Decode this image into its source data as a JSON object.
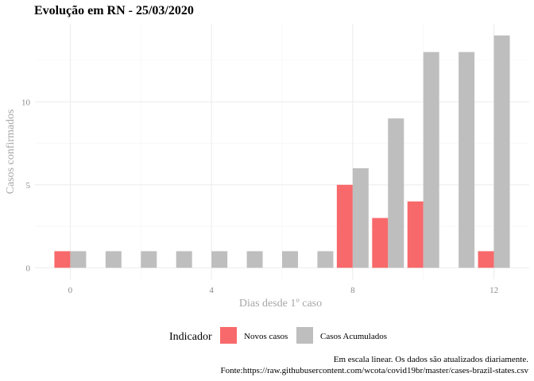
{
  "chart_data": {
    "type": "bar",
    "title": "Evolução em RN  -  25/03/2020",
    "xlabel": "Dias desde 1º caso",
    "ylabel": "Casos confirmados",
    "x": [
      0,
      1,
      2,
      3,
      4,
      5,
      6,
      7,
      8,
      9,
      10,
      11,
      12
    ],
    "series": [
      {
        "name": "Novos casos",
        "color": "#f8696b",
        "values": [
          1,
          0,
          0,
          0,
          0,
          0,
          0,
          0,
          5,
          3,
          4,
          0,
          1
        ]
      },
      {
        "name": "Casos Acumulados",
        "color": "#bebebe",
        "values": [
          1,
          1,
          1,
          1,
          1,
          1,
          1,
          1,
          6,
          9,
          13,
          13,
          14
        ]
      }
    ],
    "xticks": [
      0,
      4,
      8,
      12
    ],
    "yticks": [
      0,
      5,
      10
    ],
    "xlim": [
      -1,
      13
    ],
    "ylim": [
      -0.7,
      14.7
    ],
    "grid": true,
    "legend": {
      "title": "Indicador",
      "position": "bottom"
    }
  },
  "caption": {
    "line1": "Em escala linear. Os dados são atualizados diariamente.",
    "line2": "Fonte:https://raw.githubusercontent.com/wcota/covid19br/master/cases-brazil-states.csv"
  }
}
